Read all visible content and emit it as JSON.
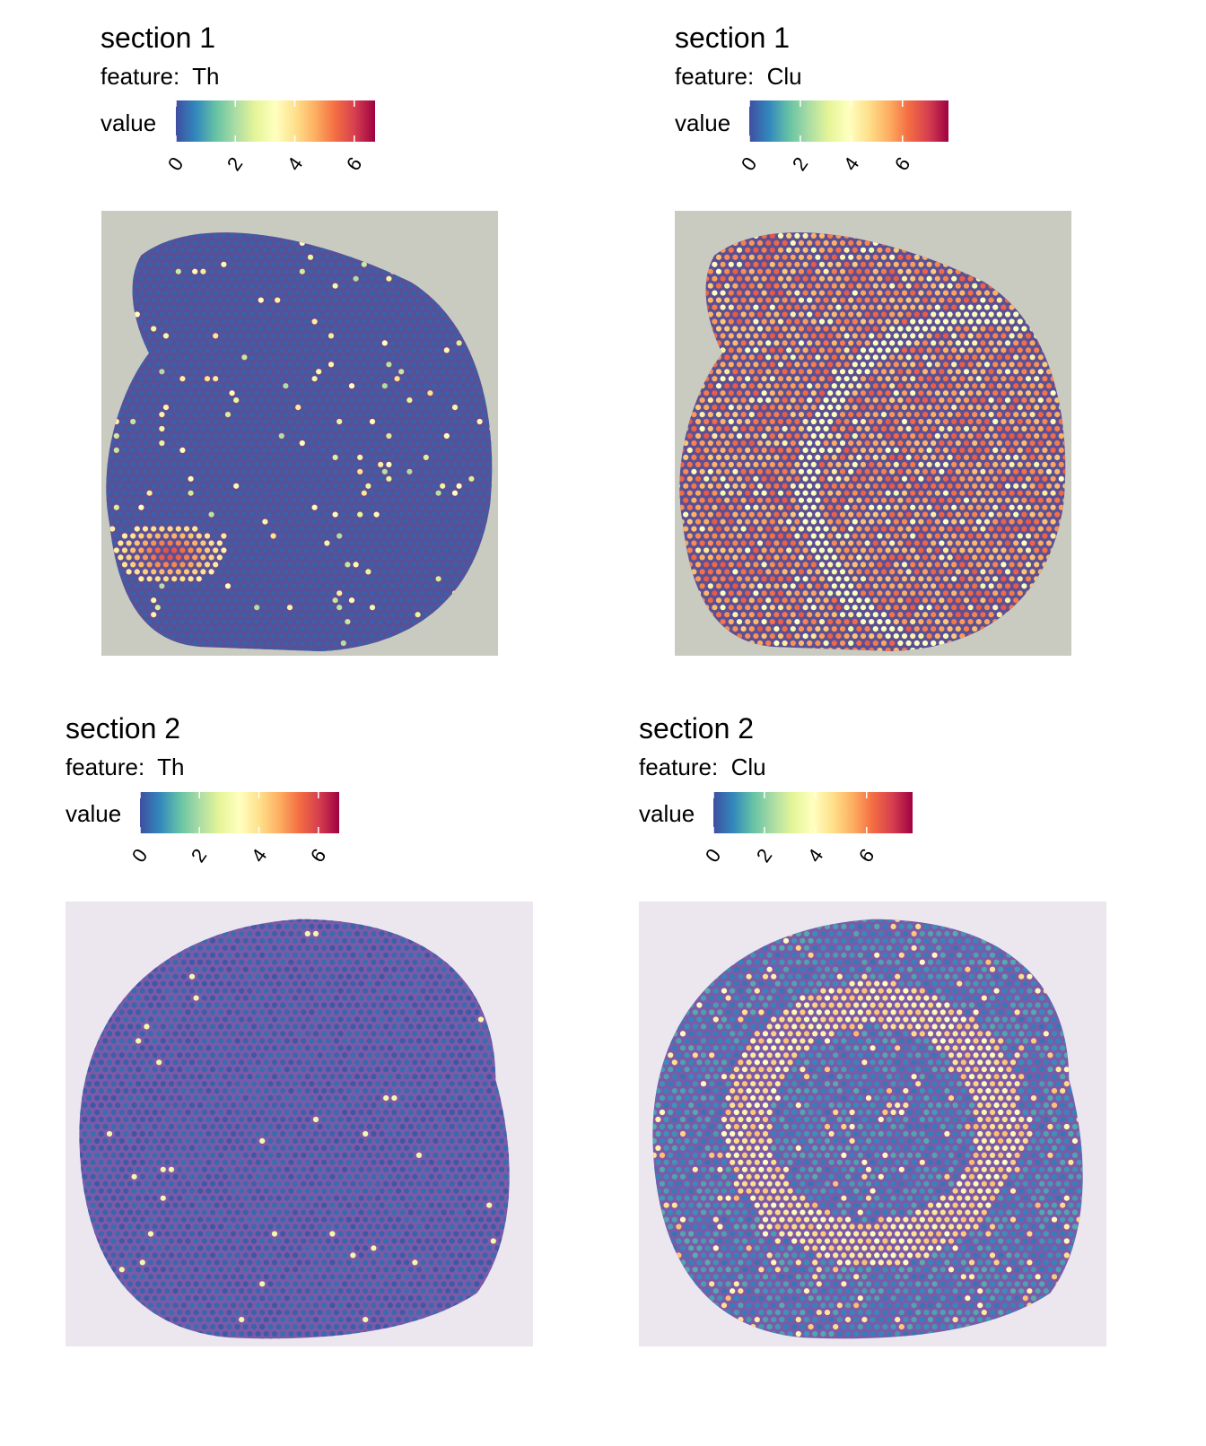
{
  "colors": {
    "palette": [
      "#3f4ea1",
      "#3288bd",
      "#66c2a5",
      "#abdda4",
      "#e6f598",
      "#ffffbf",
      "#fee08b",
      "#fdae61",
      "#f46d43",
      "#d53e4f",
      "#9e0142"
    ],
    "section1_background": "#c9cbc0",
    "section1_tissue": "#5b4f95",
    "section2_background": "#ece6ee",
    "section2_tissue": "#7d5aa8"
  },
  "chart_data": [
    {
      "type": "scatter",
      "title": "section 1",
      "subtitle_label": "feature:",
      "feature": "Th",
      "legend_title": "value",
      "colorscale": "Spectral (reversed)",
      "value_range": [
        0,
        6.7
      ],
      "legend_ticks": [
        "0",
        "2",
        "4",
        "6"
      ],
      "legend_tick_values": [
        0,
        2,
        4,
        6
      ],
      "background": "tissue image",
      "summary": {
        "typical_value": 0.2,
        "hotspot_value": 6.0
      }
    },
    {
      "type": "scatter",
      "title": "section 1",
      "subtitle_label": "feature:",
      "feature": "Clu",
      "legend_title": "value",
      "colorscale": "Spectral (reversed)",
      "value_range": [
        0,
        7.8
      ],
      "legend_ticks": [
        "0",
        "2",
        "4",
        "6"
      ],
      "legend_tick_values": [
        0,
        2,
        4,
        6
      ],
      "background": "tissue image",
      "summary": {
        "typical_value": 5.8,
        "arc_value": 3.8
      }
    },
    {
      "type": "scatter",
      "title": "section 2",
      "subtitle_label": "feature:",
      "feature": "Th",
      "legend_title": "value",
      "colorscale": "Spectral (reversed)",
      "value_range": [
        0,
        6.7
      ],
      "legend_ticks": [
        "0",
        "2",
        "4",
        "6"
      ],
      "legend_tick_values": [
        0,
        2,
        4,
        6
      ],
      "background": "tissue image",
      "summary": {
        "typical_value": 0.1
      }
    },
    {
      "type": "scatter",
      "title": "section 2",
      "subtitle_label": "feature:",
      "feature": "Clu",
      "legend_title": "value",
      "colorscale": "Spectral (reversed)",
      "value_range": [
        0,
        7.8
      ],
      "legend_ticks": [
        "0",
        "2",
        "4",
        "6"
      ],
      "legend_tick_values": [
        0,
        2,
        4,
        6
      ],
      "background": "tissue image",
      "summary": {
        "typical_value": 0.5,
        "ring_value": 4.5
      }
    }
  ]
}
